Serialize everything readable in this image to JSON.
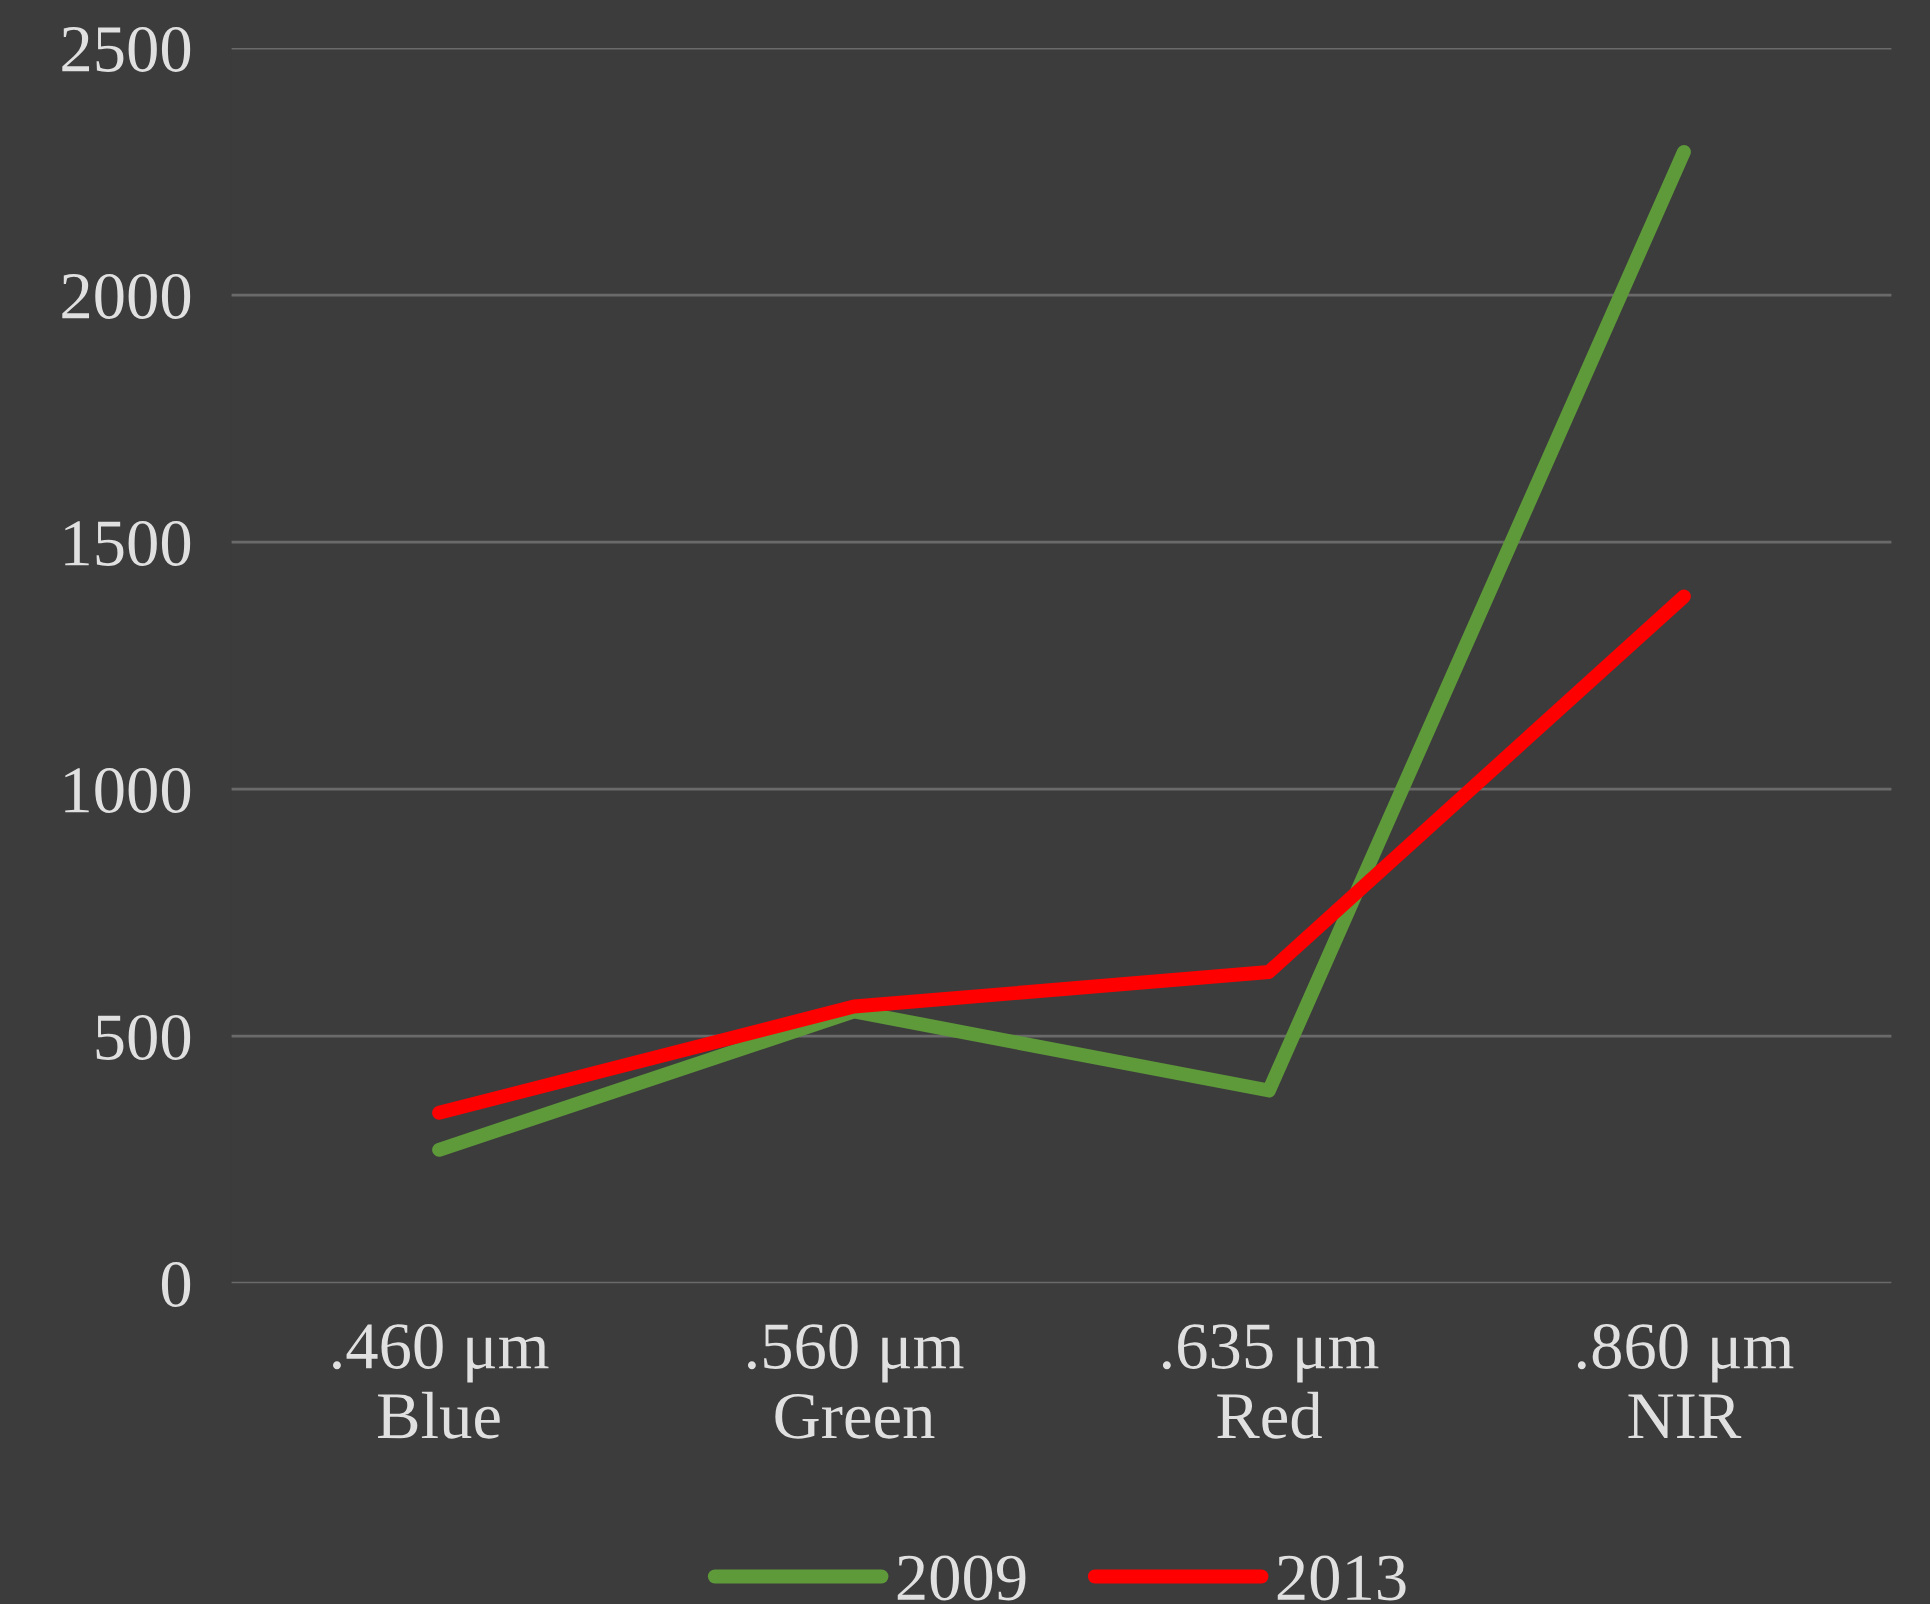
{
  "chart_data": {
    "type": "line",
    "categories": [
      ".460 μm\nBlue",
      ".560 μm\nGreen",
      ".635 μm\nRed",
      ".860 μm\nNIR"
    ],
    "series": [
      {
        "name": "2009",
        "color": "#5e9a3a",
        "values": [
          270,
          550,
          390,
          2290
        ]
      },
      {
        "name": "2013",
        "color": "#ff0000",
        "values": [
          345,
          560,
          630,
          1390
        ]
      }
    ],
    "ylim": [
      0,
      2500
    ],
    "yticks": [
      0,
      500,
      1000,
      1500,
      2000,
      2500
    ],
    "grid": "y",
    "legend": "bottom",
    "marker": "none",
    "line_style": "solid"
  }
}
